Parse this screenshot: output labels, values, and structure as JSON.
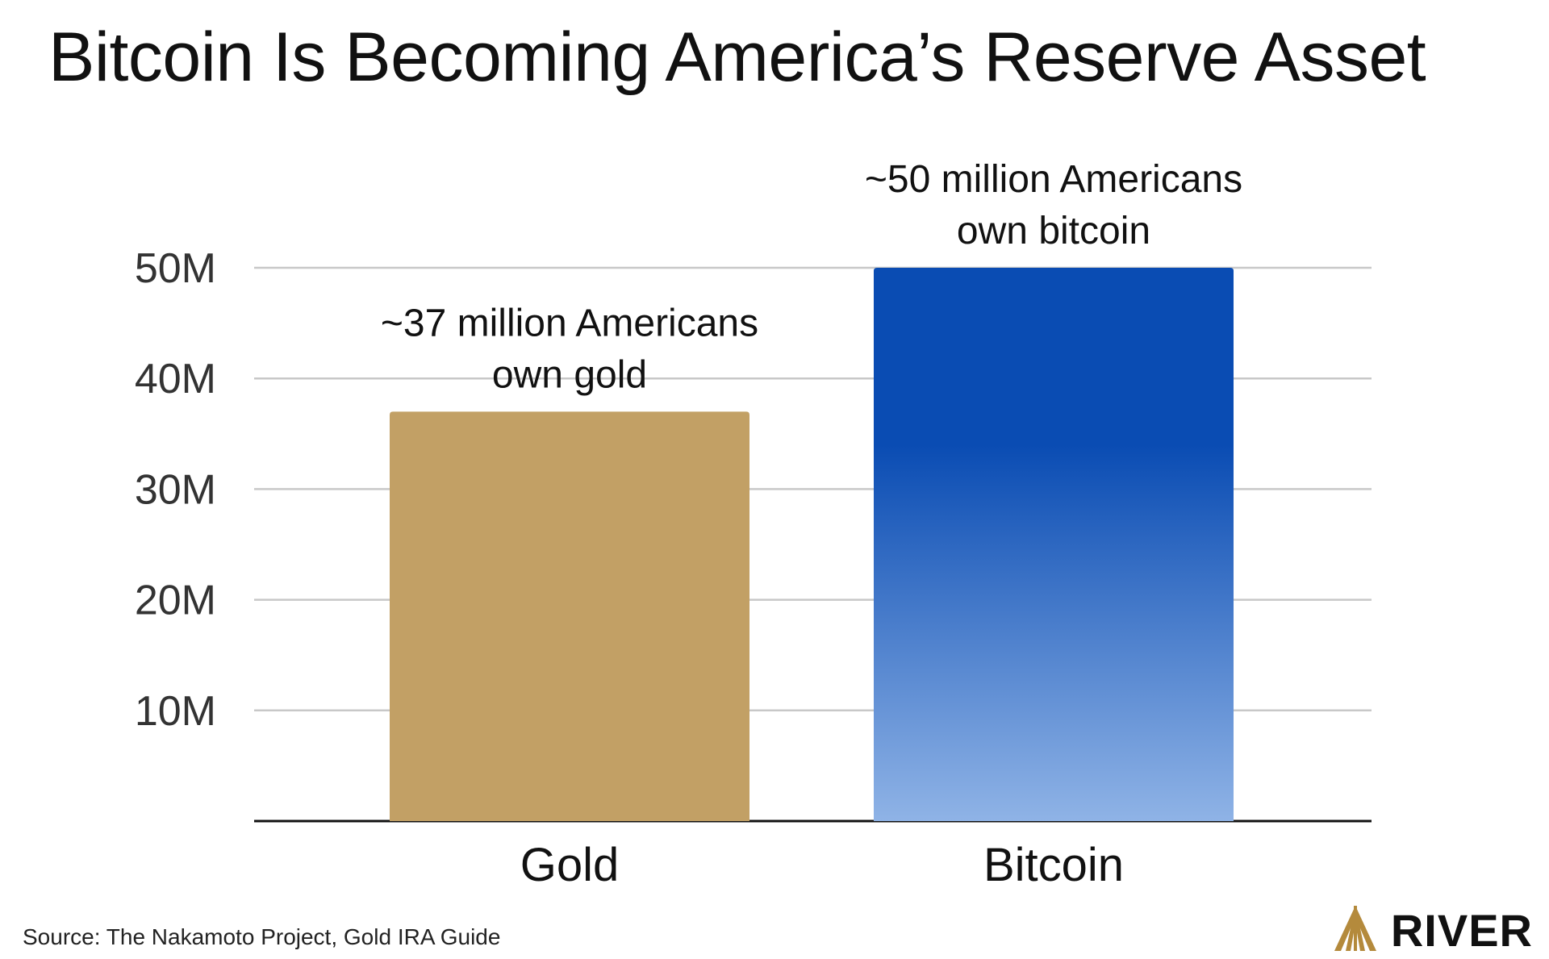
{
  "title": "Bitcoin Is Becoming America’s Reserve Asset",
  "source": "Source: The Nakamoto Project, Gold IRA Guide",
  "brand": {
    "name": "RIVER",
    "icon": "river-logo-icon"
  },
  "colors": {
    "gold": "#C2A065",
    "bitcoin_top": "#0A4CB3",
    "bitcoin_bottom": "#8FB3E6",
    "gridline": "#C8C8C8",
    "axis": "#111111",
    "logo_gold": "#B48A3C"
  },
  "chart_data": {
    "type": "bar",
    "title": "Bitcoin Is Becoming America’s Reserve Asset",
    "xlabel": "",
    "ylabel": "",
    "categories": [
      "Gold",
      "Bitcoin"
    ],
    "values": [
      37000000,
      50000000
    ],
    "ylim": [
      0,
      50000000
    ],
    "yticks": [
      10000000,
      20000000,
      30000000,
      40000000,
      50000000
    ],
    "ytick_labels": [
      "10M",
      "20M",
      "30M",
      "40M",
      "50M"
    ],
    "annotations": [
      [
        "~37 million Americans",
        "own gold"
      ],
      [
        "~50 million Americans",
        "own bitcoin"
      ]
    ],
    "grid": true,
    "legend": "none"
  }
}
